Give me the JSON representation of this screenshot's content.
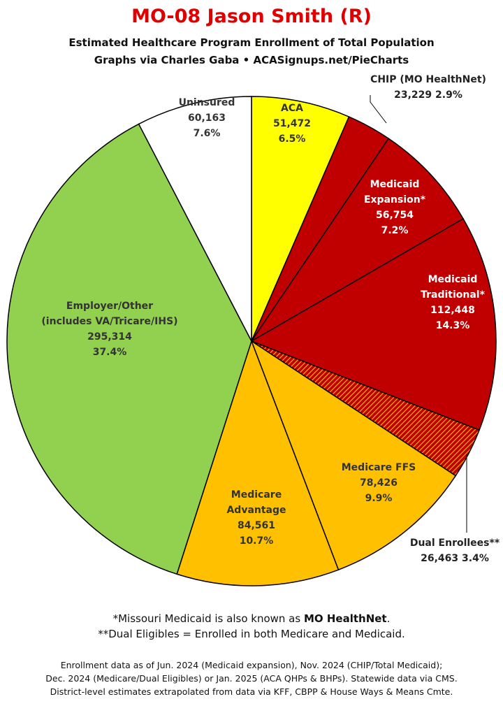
{
  "title": "MO-08 Jason Smith (R)",
  "subtitle_line1": "Estimated Healthcare Program Enrollment of Total Population",
  "subtitle_line2": "Graphs via Charles Gaba   •   ACASignups.net/PieCharts",
  "chart_data": {
    "type": "pie",
    "title": "MO-08 Jason Smith (R)",
    "start_angle_deg": 0,
    "direction": "clockwise",
    "slices": [
      {
        "label": "ACA",
        "value": 51472,
        "percent": "6.5%",
        "color": "#ffff00",
        "text_color": "#333333",
        "label_lines": [
          "ACA"
        ],
        "display_value": "51,472"
      },
      {
        "label": "CHIP (MO HealthNet)",
        "value": 23229,
        "percent": "2.9%",
        "color": "#c00000",
        "text_color": "#222222",
        "label_lines": [
          "CHIP (MO HealthNet)"
        ],
        "display_value": "23,229",
        "callout": true
      },
      {
        "label": "Medicaid Expansion*",
        "value": 56754,
        "percent": "7.2%",
        "color": "#c00000",
        "text_color": "#ffffff",
        "label_lines": [
          "Medicaid",
          "Expansion*"
        ],
        "display_value": "56,754"
      },
      {
        "label": "Medicaid Traditional*",
        "value": 112448,
        "percent": "14.3%",
        "color": "#c00000",
        "text_color": "#ffffff",
        "label_lines": [
          "Medicaid",
          "Traditional*"
        ],
        "display_value": "112,448"
      },
      {
        "label": "Dual Enrollees**",
        "value": 26463,
        "percent": "3.4%",
        "color": "#e85a00",
        "text_color": "#222222",
        "label_lines": [
          "Dual Enrollees**"
        ],
        "display_value": "26,463",
        "callout": true,
        "pattern": "hatched"
      },
      {
        "label": "Medicare FFS",
        "value": 78426,
        "percent": "9.9%",
        "color": "#ffc000",
        "text_color": "#333333",
        "label_lines": [
          "Medicare FFS"
        ],
        "display_value": "78,426"
      },
      {
        "label": "Medicare Advantage",
        "value": 84561,
        "percent": "10.7%",
        "color": "#ffc000",
        "text_color": "#333333",
        "label_lines": [
          "Medicare",
          "Advantage"
        ],
        "display_value": "84,561"
      },
      {
        "label": "Employer/Other (includes VA/Tricare/IHS)",
        "value": 295314,
        "percent": "37.4%",
        "color": "#92d050",
        "text_color": "#333333",
        "label_lines": [
          "Employer/Other",
          "(includes VA/Tricare/IHS)"
        ],
        "display_value": "295,314"
      },
      {
        "label": "Uninsured",
        "value": 60163,
        "percent": "7.6%",
        "color": "#ffffff",
        "text_color": "#333333",
        "label_lines": [
          "Uninsured"
        ],
        "display_value": "60,163"
      }
    ]
  },
  "notes": {
    "line1_prefix": "*Missouri Medicaid is also known as ",
    "line1_bold": "MO HealthNet",
    "line1_suffix": ".",
    "line2": "**Dual Eligibles = Enrolled in both Medicare and Medicaid."
  },
  "source": {
    "line1": "Enrollment data as of Jun. 2024 (Medicaid expansion), Nov. 2024 (CHIP/Total Medicaid);",
    "line2": "Dec. 2024 (Medicare/Dual Eligibles) or Jan. 2025 (ACA QHPs & BHPs). Statewide data via CMS.",
    "line3": "District-level estimates extrapolated from data via KFF, CBPP & House Ways & Means Cmte."
  }
}
